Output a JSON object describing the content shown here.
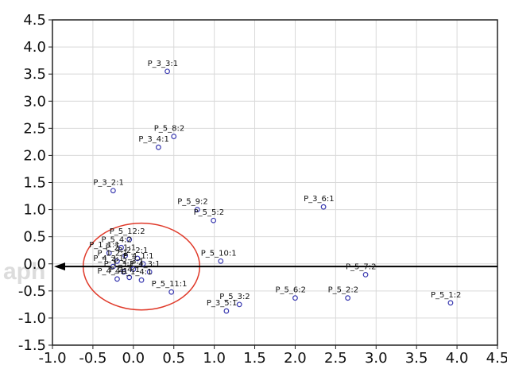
{
  "watermark": "aph",
  "chart_data": {
    "type": "scatter",
    "title": "",
    "xlabel": "",
    "ylabel": "",
    "xlim": [
      -1.0,
      4.5
    ],
    "ylim": [
      -1.5,
      4.5
    ],
    "xticks": [
      "-1.0",
      "-0.5",
      "0.0",
      "0.5",
      "1.0",
      "1.5",
      "2.0",
      "2.5",
      "3.0",
      "3.5",
      "4.0",
      "4.5"
    ],
    "yticks": [
      "4.5",
      "4.0",
      "3.5",
      "3.0",
      "2.5",
      "2.0",
      "1.5",
      "1.0",
      "0.5",
      "0.0",
      "-0.5",
      "-1.0",
      "-1.5"
    ],
    "grid": true,
    "colors": {
      "points": "#3a3ab0",
      "axis_arrow": "#000000",
      "ellipse": "#e03a2a",
      "grid": "#d9d9d9"
    },
    "ellipse": {
      "cx": 0.1,
      "cy": -0.05,
      "rx": 0.72,
      "ry": 0.8
    },
    "arrow_y": -0.05,
    "points": [
      {
        "label": "P_3_3:1",
        "x": 0.42,
        "y": 3.55
      },
      {
        "label": "P_5_8:2",
        "x": 0.5,
        "y": 2.35
      },
      {
        "label": "P_3_4:1",
        "x": 0.31,
        "y": 2.15
      },
      {
        "label": "P_3_2:1",
        "x": -0.25,
        "y": 1.35
      },
      {
        "label": "P_5_9:2",
        "x": 0.79,
        "y": 1.0
      },
      {
        "label": "P_5_5:2",
        "x": 0.99,
        "y": 0.8
      },
      {
        "label": "P_3_6:1",
        "x": 2.35,
        "y": 1.05
      },
      {
        "label": "P_5_10:1",
        "x": 1.08,
        "y": 0.05
      },
      {
        "label": "P_5_7:2",
        "x": 2.87,
        "y": -0.2
      },
      {
        "label": "P_5_11:1",
        "x": 0.47,
        "y": -0.52
      },
      {
        "label": "P_5_6:2",
        "x": 2.0,
        "y": -0.63
      },
      {
        "label": "P_5_2:2",
        "x": 2.65,
        "y": -0.63
      },
      {
        "label": "P_5_3:2",
        "x": 1.31,
        "y": -0.75
      },
      {
        "label": "P_3_5:1",
        "x": 1.15,
        "y": -0.87
      },
      {
        "label": "P_5_1:2",
        "x": 3.92,
        "y": -0.72
      },
      {
        "label": "P_5_12:2",
        "x": -0.05,
        "y": 0.45
      },
      {
        "label": "P_5_4:2",
        "x": -0.15,
        "y": 0.3
      },
      {
        "label": "P_1_1:1",
        "x": -0.3,
        "y": 0.2
      },
      {
        "label": "P_2_1:1",
        "x": -0.1,
        "y": 0.15
      },
      {
        "label": "P_2_2:1",
        "x": 0.05,
        "y": 0.1
      },
      {
        "label": "P_1_2:1",
        "x": -0.2,
        "y": 0.05
      },
      {
        "label": "P_4_1:1",
        "x": 0.12,
        "y": 0.0
      },
      {
        "label": "P_4_2:1",
        "x": -0.25,
        "y": -0.05
      },
      {
        "label": "P_2_3:1",
        "x": 0.0,
        "y": -0.1
      },
      {
        "label": "P_1_3:1",
        "x": -0.12,
        "y": -0.15
      },
      {
        "label": "P_4_3:1",
        "x": 0.2,
        "y": -0.15
      },
      {
        "label": "P_2_4:1",
        "x": -0.05,
        "y": -0.25
      },
      {
        "label": "P_1_4:1",
        "x": 0.1,
        "y": -0.3
      },
      {
        "label": "P_4_4:1",
        "x": -0.2,
        "y": -0.28
      }
    ]
  }
}
